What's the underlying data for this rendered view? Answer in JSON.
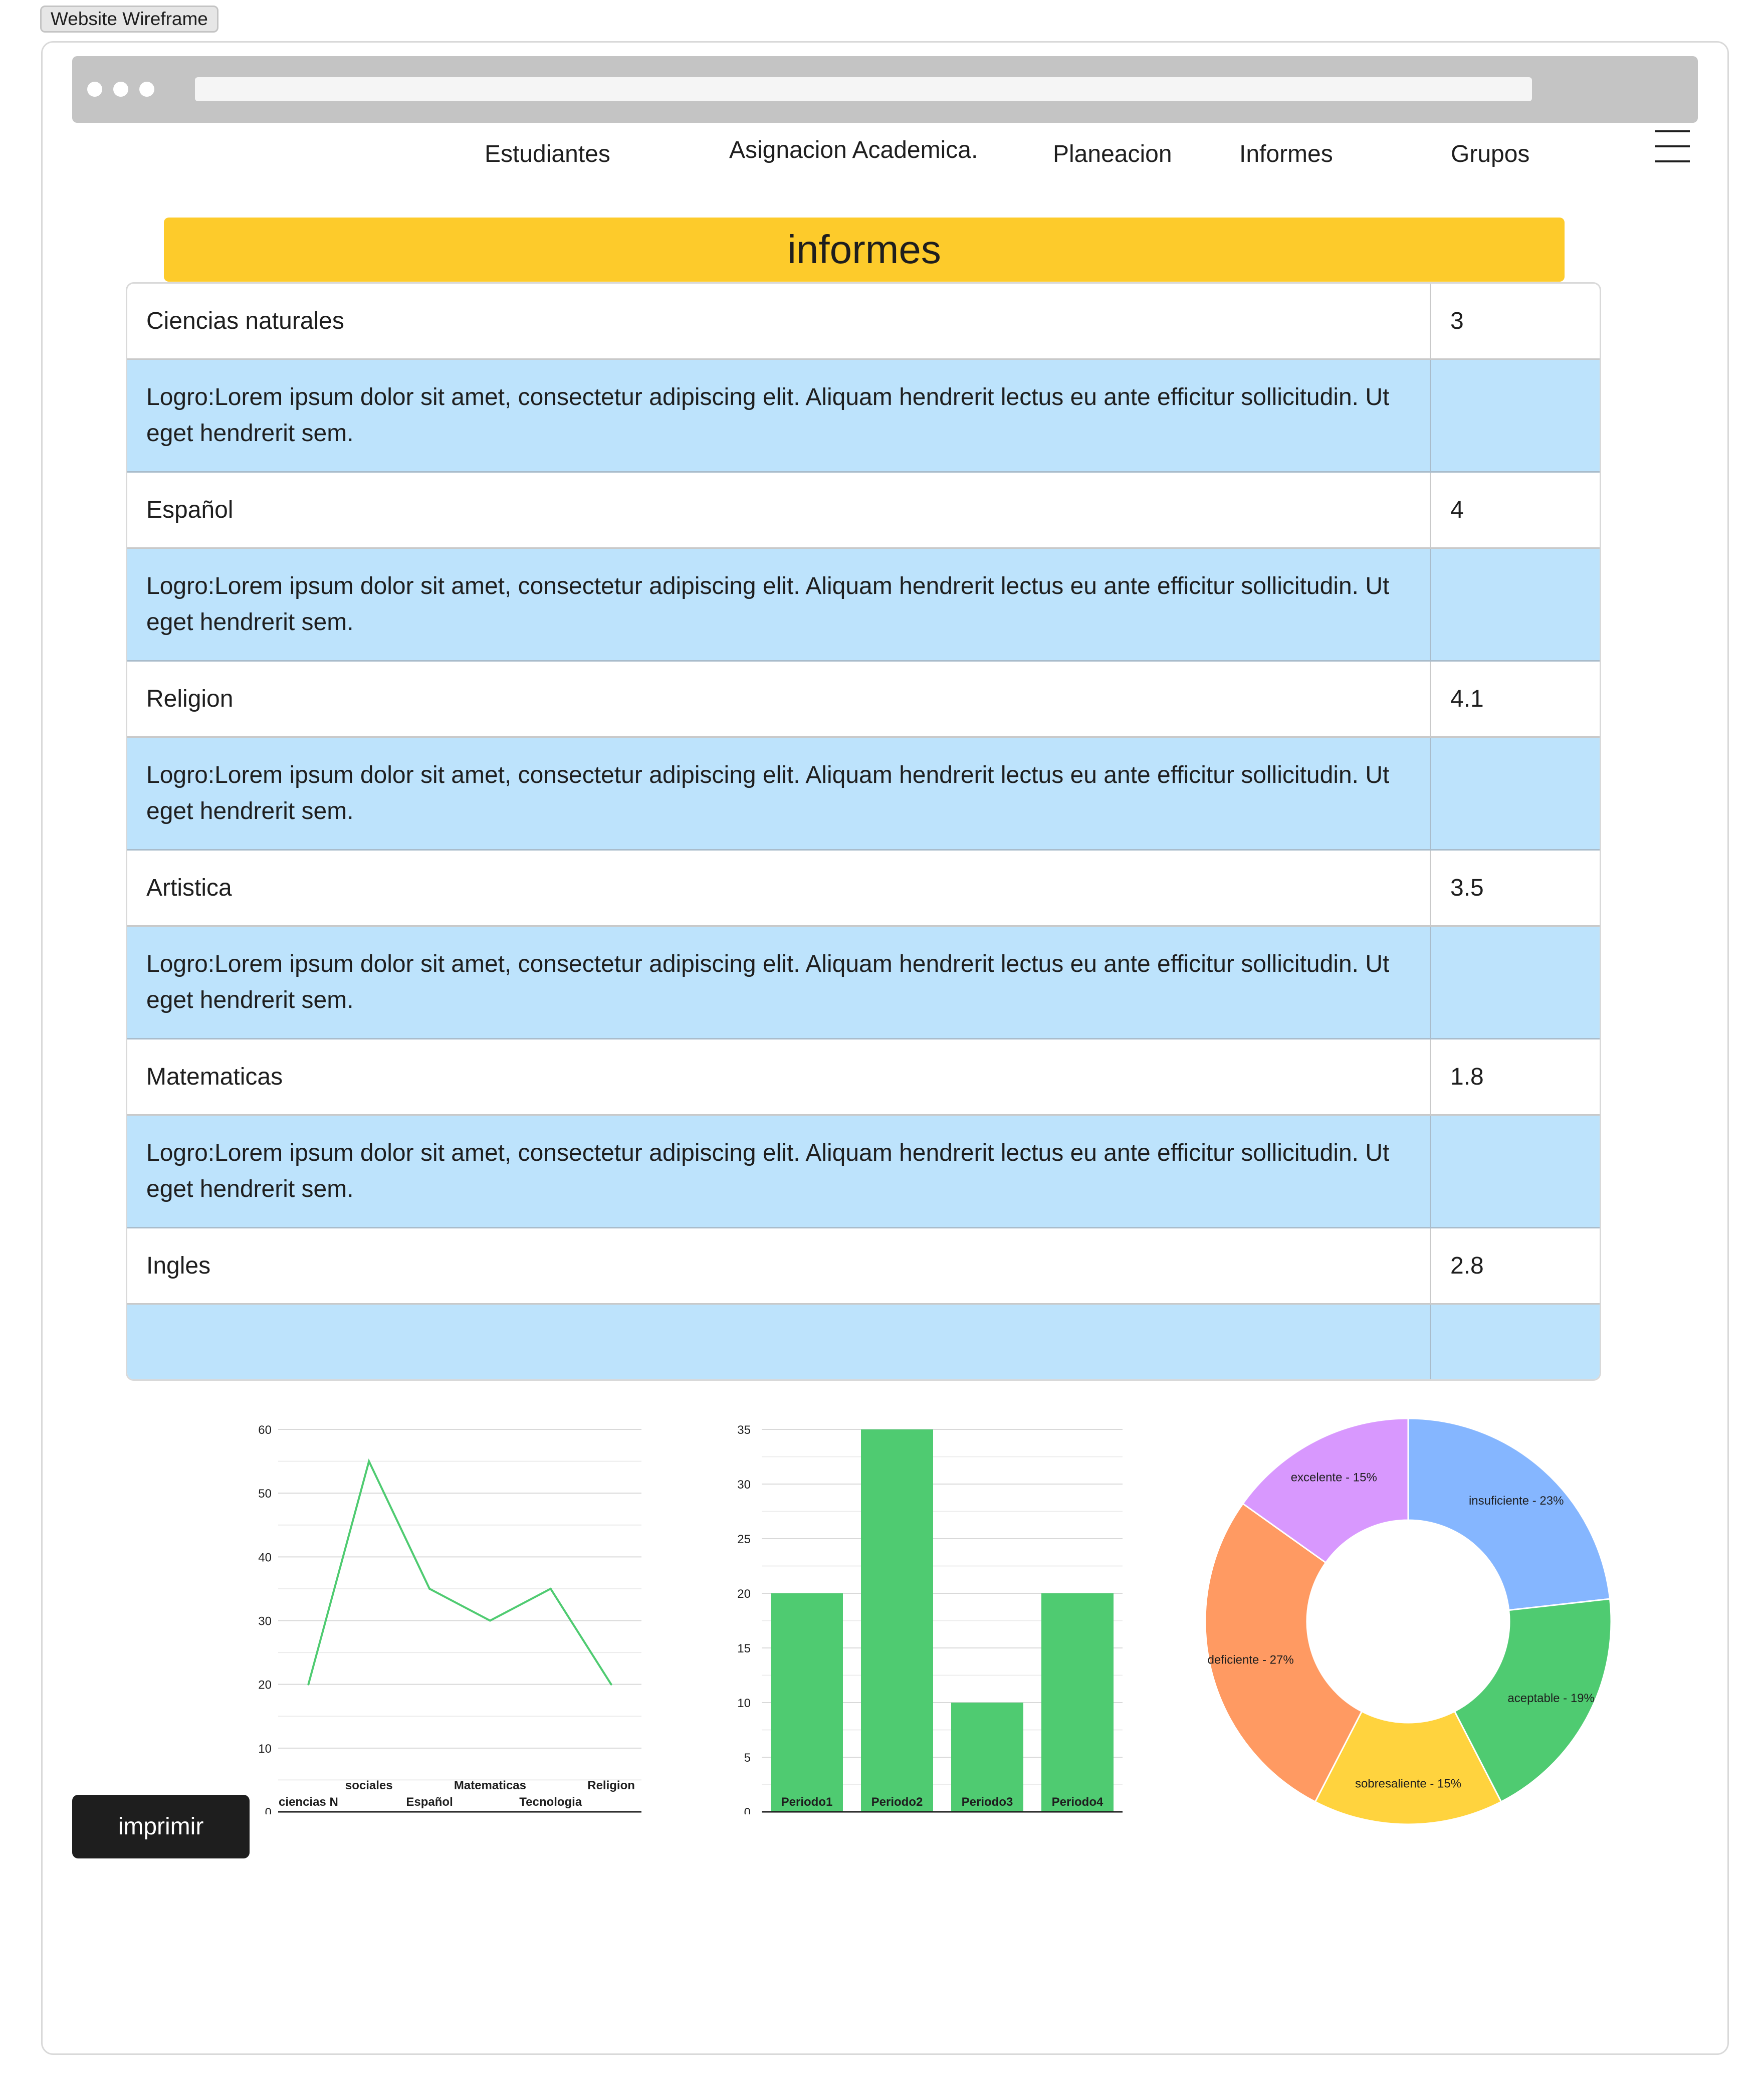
{
  "frame_label": "Website Wireframe",
  "nav": {
    "items": [
      "Estudiantes",
      "Asignacion Academica.",
      "Planeacion",
      "Informes",
      "Grupos"
    ],
    "menu_icon": "hamburger-menu-icon"
  },
  "page_title": "informes",
  "subjects": [
    {
      "name": "Ciencias naturales",
      "grade": "3",
      "logro": "Logro:Lorem ipsum dolor sit amet, consectetur adipiscing elit. Aliquam hendrerit lectus eu ante efficitur sollicitudin. Ut eget hendrerit sem."
    },
    {
      "name": "Español",
      "grade": "4",
      "logro": "Logro:Lorem ipsum dolor sit amet, consectetur adipiscing elit. Aliquam hendrerit lectus eu ante efficitur sollicitudin. Ut eget hendrerit sem."
    },
    {
      "name": "Religion",
      "grade": "4.1",
      "logro": "Logro:Lorem ipsum dolor sit amet, consectetur adipiscing elit. Aliquam hendrerit lectus eu ante efficitur sollicitudin. Ut eget hendrerit sem."
    },
    {
      "name": "Artistica",
      "grade": "3.5",
      "logro": "Logro:Lorem ipsum dolor sit amet, consectetur adipiscing elit. Aliquam hendrerit lectus eu ante efficitur sollicitudin. Ut eget hendrerit sem."
    },
    {
      "name": "Matematicas",
      "grade": "1.8",
      "logro": "Logro:Lorem ipsum dolor sit amet, consectetur adipiscing elit. Aliquam hendrerit lectus eu ante efficitur sollicitudin. Ut eget hendrerit sem."
    },
    {
      "name": "Ingles",
      "grade": "2.8",
      "logro": ""
    }
  ],
  "print_button": "imprimir",
  "colors": {
    "accent": "#fdcb2b",
    "row_highlight": "#bde3fc",
    "chart_green": "#4fcb71",
    "button": "#1e1e1e"
  },
  "chart_data": [
    {
      "type": "line",
      "categories": [
        "ciencias N",
        "sociales",
        "Español",
        "Matematicas",
        "Tecnologia",
        "Religion"
      ],
      "values": [
        20,
        55,
        35,
        30,
        35,
        20
      ],
      "ylim": [
        0,
        60
      ],
      "yticks": [
        0,
        10,
        20,
        30,
        40,
        50,
        60
      ],
      "grid": true,
      "color": "#4fcb71"
    },
    {
      "type": "bar",
      "categories": [
        "Periodo1",
        "Periodo2",
        "Periodo3",
        "Periodo4"
      ],
      "values": [
        20,
        35,
        10,
        20
      ],
      "ylim": [
        0,
        35
      ],
      "yticks": [
        0,
        5,
        10,
        15,
        20,
        25,
        30,
        35
      ],
      "grid": true,
      "color": "#4fcb71"
    },
    {
      "type": "pie",
      "donut": true,
      "slices": [
        {
          "label": "insuficiente - 23%",
          "value": 23,
          "color": "#85b6ff"
        },
        {
          "label": "aceptable - 19%",
          "value": 19,
          "color": "#4fcb71"
        },
        {
          "label": "sobresaliente - 15%",
          "value": 15,
          "color": "#ffd33e"
        },
        {
          "label": "deficiente - 27%",
          "value": 27,
          "color": "#ff9a62"
        },
        {
          "label": "excelente - 15%",
          "value": 15,
          "color": "#d898fe"
        }
      ]
    }
  ]
}
